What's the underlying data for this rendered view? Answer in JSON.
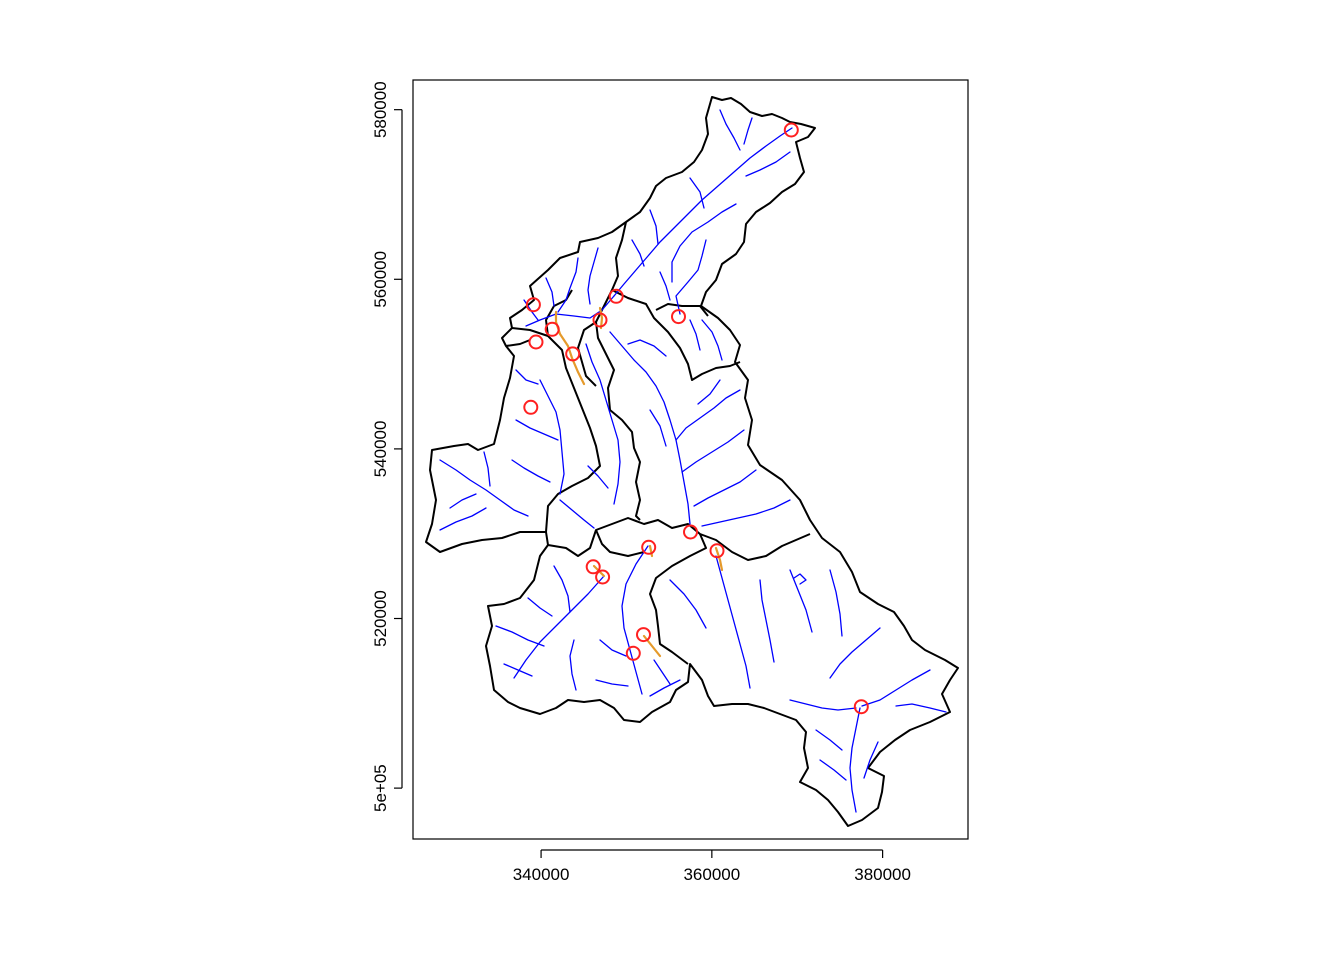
{
  "chart_data": {
    "type": "scatter",
    "title": "",
    "xlabel": "",
    "ylabel": "",
    "xlim": [
      325000,
      390000
    ],
    "ylim": [
      494000,
      583500
    ],
    "x_ticks": [
      {
        "value": 340000,
        "label": "340000"
      },
      {
        "value": 360000,
        "label": "360000"
      },
      {
        "value": 380000,
        "label": "380000"
      }
    ],
    "y_ticks": [
      {
        "value": 500000,
        "label": "5e+05"
      },
      {
        "value": 520000,
        "label": "520000"
      },
      {
        "value": 540000,
        "label": "540000"
      },
      {
        "value": 560000,
        "label": "560000"
      },
      {
        "value": 580000,
        "label": "580000"
      }
    ],
    "grid": false,
    "legend": "none",
    "colors": {
      "catchment_boundary": "#000000",
      "streams": "#0000ff",
      "reaches": "#e59a2b",
      "gauge_points": "#ff2020"
    },
    "gauge_points": [
      {
        "x": 369300,
        "y": 577600
      },
      {
        "x": 339100,
        "y": 557000
      },
      {
        "x": 348800,
        "y": 558000
      },
      {
        "x": 356100,
        "y": 555600
      },
      {
        "x": 346900,
        "y": 555200
      },
      {
        "x": 341300,
        "y": 554100
      },
      {
        "x": 339400,
        "y": 552600
      },
      {
        "x": 343700,
        "y": 551200
      },
      {
        "x": 338800,
        "y": 544900
      },
      {
        "x": 357500,
        "y": 530200
      },
      {
        "x": 352600,
        "y": 528400
      },
      {
        "x": 360600,
        "y": 528000
      },
      {
        "x": 346100,
        "y": 526100
      },
      {
        "x": 347200,
        "y": 524900
      },
      {
        "x": 352000,
        "y": 518100
      },
      {
        "x": 350800,
        "y": 515900
      },
      {
        "x": 377500,
        "y": 509600
      }
    ]
  }
}
